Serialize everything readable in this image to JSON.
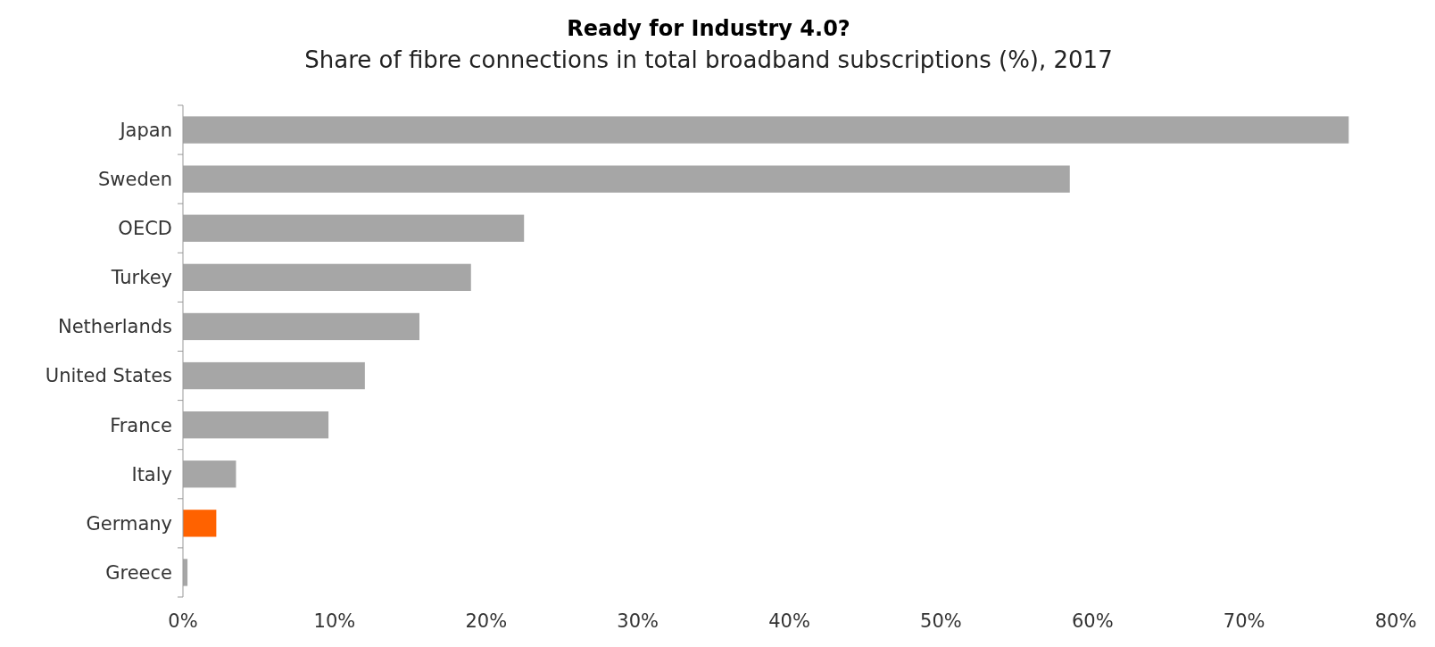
{
  "chart_data": {
    "type": "bar",
    "orientation": "horizontal",
    "title": "Ready for Industry 4.0?",
    "subtitle": "Share of fibre connections in total broadband subscriptions (%), 2017",
    "categories": [
      "Japan",
      "Sweden",
      "OECD",
      "Turkey",
      "Netherlands",
      "United States",
      "France",
      "Italy",
      "Germany",
      "Greece"
    ],
    "values": [
      76.9,
      58.5,
      22.5,
      19.0,
      15.6,
      12.0,
      9.6,
      3.5,
      2.2,
      0.3
    ],
    "colors": [
      "#a6a6a6",
      "#a6a6a6",
      "#a6a6a6",
      "#a6a6a6",
      "#a6a6a6",
      "#a6a6a6",
      "#a6a6a6",
      "#a6a6a6",
      "#ff6200",
      "#a6a6a6"
    ],
    "xlim": [
      0,
      80
    ],
    "xticks": [
      {
        "value": 0,
        "label": "0%"
      },
      {
        "value": 10,
        "label": "10%"
      },
      {
        "value": 20,
        "label": "20%"
      },
      {
        "value": 30,
        "label": "30%"
      },
      {
        "value": 40,
        "label": "40%"
      },
      {
        "value": 50,
        "label": "50%"
      },
      {
        "value": 60,
        "label": "60%"
      },
      {
        "value": 70,
        "label": "70%"
      },
      {
        "value": 80,
        "label": "80%"
      }
    ],
    "grid": false
  }
}
